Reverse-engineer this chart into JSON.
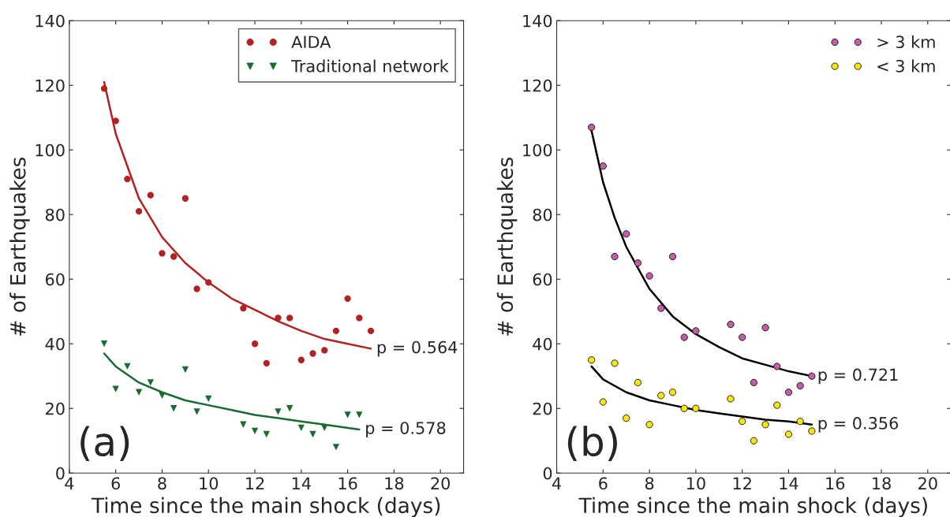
{
  "chart_data": [
    {
      "type": "scatter",
      "xlabel": "Time since the main shock (days)",
      "ylabel": "# of Earthquakes",
      "xlim": [
        4,
        21
      ],
      "xticks": [
        4,
        6,
        8,
        10,
        12,
        14,
        16,
        18,
        20
      ],
      "ylim": [
        0,
        140
      ],
      "yticks": [
        0,
        20,
        40,
        60,
        80,
        100,
        120,
        140
      ],
      "grid": false,
      "legend": "top right",
      "annotations": [
        "(a)",
        {
          "text": "p = 0.564",
          "x": 17,
          "y": 38.5
        },
        {
          "text": "p = 0.578",
          "x": 16.5,
          "y": 13.5
        }
      ],
      "series": [
        {
          "name": "AIDA",
          "color": "#b22222",
          "marker": "circle",
          "x": [
            5.5,
            6,
            6.5,
            7,
            7.5,
            8,
            8.5,
            9,
            9.5,
            10,
            11.5,
            12,
            12.5,
            13,
            13.5,
            14,
            14.5,
            15,
            15.5,
            16,
            16.5,
            17
          ],
          "values": [
            119,
            109,
            91,
            81,
            86,
            68,
            67,
            85,
            57,
            59,
            51,
            40,
            34,
            48,
            48,
            35,
            37,
            38,
            44,
            54,
            48,
            44
          ]
        },
        {
          "name": "Traditional network",
          "color": "#1a6b32",
          "marker": "triangle",
          "x": [
            5.5,
            6,
            6.5,
            7,
            7.5,
            8,
            8.5,
            9,
            9.5,
            10,
            11.5,
            12,
            12.5,
            13,
            13.5,
            14,
            14.5,
            15,
            15.5,
            16,
            16.5
          ],
          "values": [
            40,
            26,
            33,
            25,
            28,
            24,
            20,
            32,
            19,
            23,
            15,
            13,
            12,
            19,
            20,
            14,
            12,
            14,
            8,
            18,
            18
          ]
        },
        {
          "type": "line",
          "color": "#b22222",
          "x": [
            5.5,
            6,
            7,
            8,
            9,
            10,
            11,
            12,
            13,
            14,
            15,
            16,
            17
          ],
          "values": [
            121,
            105,
            85,
            73,
            65,
            59,
            54,
            50.5,
            47,
            44,
            41.5,
            40,
            38.5
          ]
        },
        {
          "type": "line",
          "color": "#1a6b32",
          "x": [
            5.5,
            6,
            7,
            8,
            9,
            10,
            11,
            12,
            13,
            14,
            15,
            16.5
          ],
          "values": [
            37,
            33,
            28,
            25,
            22.5,
            21,
            19.5,
            18,
            17,
            16,
            15,
            13.5
          ]
        }
      ]
    },
    {
      "type": "scatter",
      "xlabel": "Time since the main shock (days)",
      "ylabel": "# of Earthquakes",
      "xlim": [
        4,
        21
      ],
      "xticks": [
        4,
        6,
        8,
        10,
        12,
        14,
        16,
        18,
        20
      ],
      "ylim": [
        0,
        140
      ],
      "yticks": [
        0,
        20,
        40,
        60,
        80,
        100,
        120,
        140
      ],
      "grid": false,
      "legend": "top right",
      "annotations": [
        "(b)",
        {
          "text": "p = 0.721",
          "x": 15,
          "y": 30
        },
        {
          "text": "p = 0.356",
          "x": 15,
          "y": 15
        }
      ],
      "series": [
        {
          "name": "> 3 km",
          "color": "#c05fa8",
          "marker": "circle",
          "x": [
            5.5,
            6,
            6.5,
            7,
            7.5,
            8,
            8.5,
            9,
            9.5,
            10,
            11.5,
            12,
            12.5,
            13,
            13.5,
            14,
            14.5,
            15
          ],
          "values": [
            107,
            95,
            67,
            74,
            65,
            61,
            51,
            67,
            42,
            44,
            46,
            42,
            28,
            45,
            33,
            25,
            27,
            30
          ]
        },
        {
          "name": "< 3 km",
          "color": "#f5e614",
          "marker": "circle",
          "x": [
            5.5,
            6,
            6.5,
            7,
            7.5,
            8,
            8.5,
            9,
            9.5,
            10,
            11.5,
            12,
            12.5,
            13,
            13.5,
            14,
            14.5,
            15
          ],
          "values": [
            35,
            22,
            34,
            17,
            28,
            15,
            24,
            25,
            20,
            20,
            23,
            16,
            10,
            15,
            21,
            12,
            16,
            13
          ]
        },
        {
          "type": "line",
          "color": "#000000",
          "x": [
            5.5,
            6,
            6.5,
            7,
            8,
            9,
            10,
            11,
            12,
            13,
            14,
            15
          ],
          "values": [
            106,
            90,
            79,
            70,
            57,
            48.5,
            43,
            39,
            35.5,
            33.5,
            31.5,
            30
          ]
        },
        {
          "type": "line",
          "color": "#000000",
          "x": [
            5.5,
            6,
            7,
            8,
            9,
            10,
            11,
            12,
            13,
            14,
            15
          ],
          "values": [
            33,
            29,
            25,
            22.5,
            21,
            19.5,
            18.5,
            17.5,
            16.5,
            16,
            15
          ]
        }
      ]
    }
  ]
}
